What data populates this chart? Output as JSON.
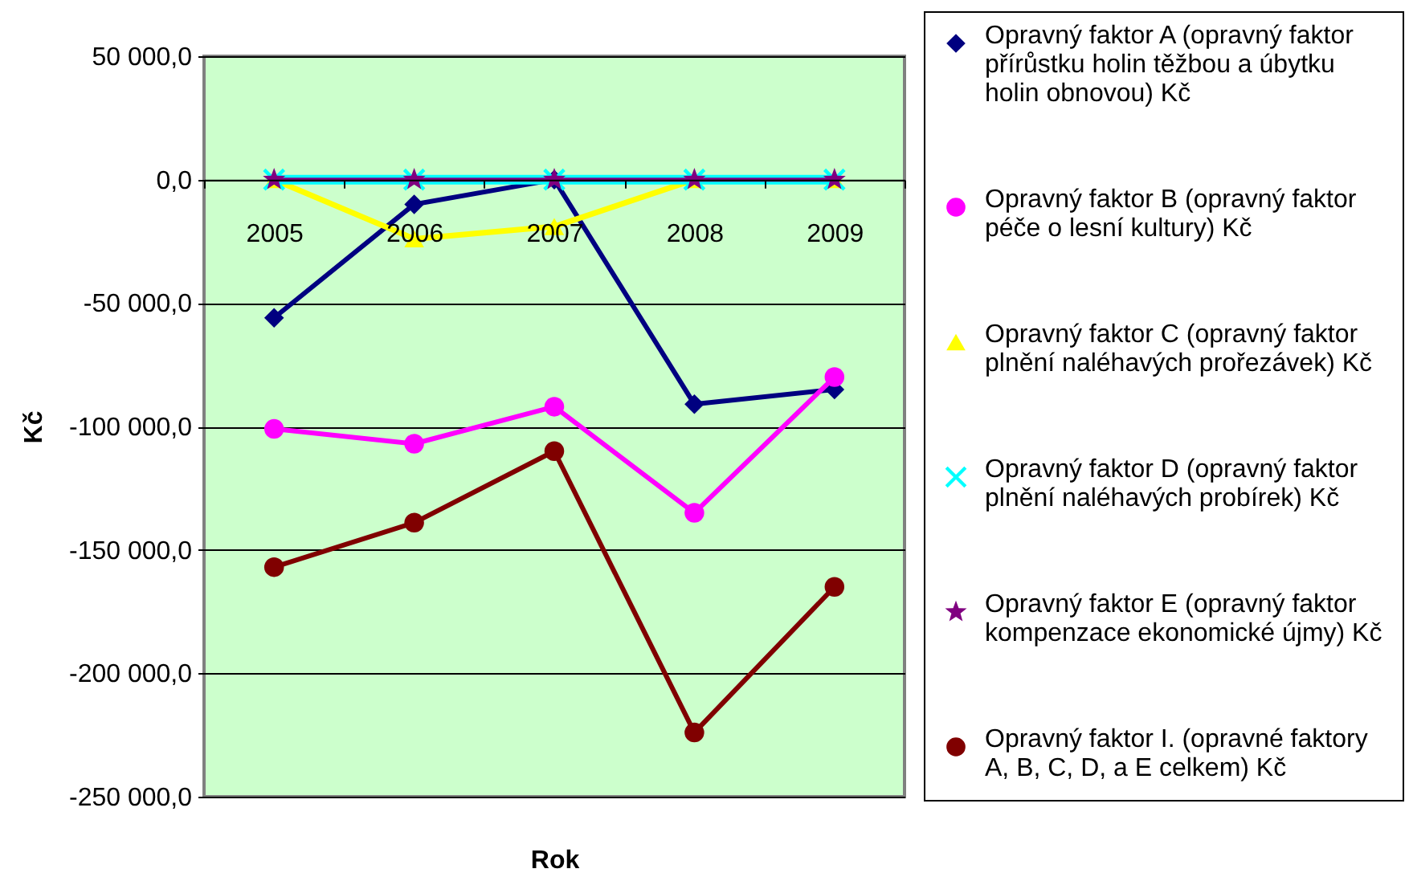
{
  "chart_data": {
    "type": "line",
    "xlabel": "Rok",
    "ylabel": "Kč",
    "categories": [
      "2005",
      "2006",
      "2007",
      "2008",
      "2009"
    ],
    "ylim": [
      -250000,
      50000
    ],
    "yticks": [
      {
        "value": 50000,
        "label": "50 000,0"
      },
      {
        "value": 0,
        "label": "0,0"
      },
      {
        "value": -50000,
        "label": "-50 000,0"
      },
      {
        "value": -100000,
        "label": "-100 000,0"
      },
      {
        "value": -150000,
        "label": "-150 000,0"
      },
      {
        "value": -200000,
        "label": "-200 000,0"
      },
      {
        "value": -250000,
        "label": "-250 000,0"
      }
    ],
    "grid": "y",
    "legend": "right",
    "series": [
      {
        "name": "Opravný faktor A (opravný faktor přírůstku holin těžbou a úbytku holin obnovou) Kč",
        "color": "#000080",
        "marker": "diamond",
        "values": [
          -56000,
          -10000,
          0,
          -91000,
          -85000
        ]
      },
      {
        "name": "Opravný faktor B (opravný faktor péče o lesní kultury) Kč",
        "color": "#ff00ff",
        "marker": "circle",
        "values": [
          -101000,
          -107000,
          -92000,
          -135000,
          -80000
        ]
      },
      {
        "name": "Opravný faktor C (opravný faktor plnění naléhavých prořezávek) Kč",
        "color": "#ffff00",
        "marker": "triangle",
        "values": [
          0,
          -24000,
          -19000,
          0,
          0
        ]
      },
      {
        "name": "Opravný faktor D (opravný faktor plnění naléhavých probírek) Kč",
        "color": "#00ffff",
        "marker": "cross",
        "values": [
          0,
          0,
          0,
          0,
          0
        ]
      },
      {
        "name": "Opravný faktor E (opravný faktor kompenzace ekonomické újmy) Kč",
        "color": "#800080",
        "marker": "star",
        "values": [
          0,
          0,
          0,
          0,
          0
        ]
      },
      {
        "name": "Opravný faktor I. (opravné faktory A, B, C, D, a E celkem) Kč",
        "color": "#800000",
        "marker": "circle",
        "values": [
          -157000,
          -139000,
          -110000,
          -224000,
          -165000
        ]
      }
    ]
  }
}
